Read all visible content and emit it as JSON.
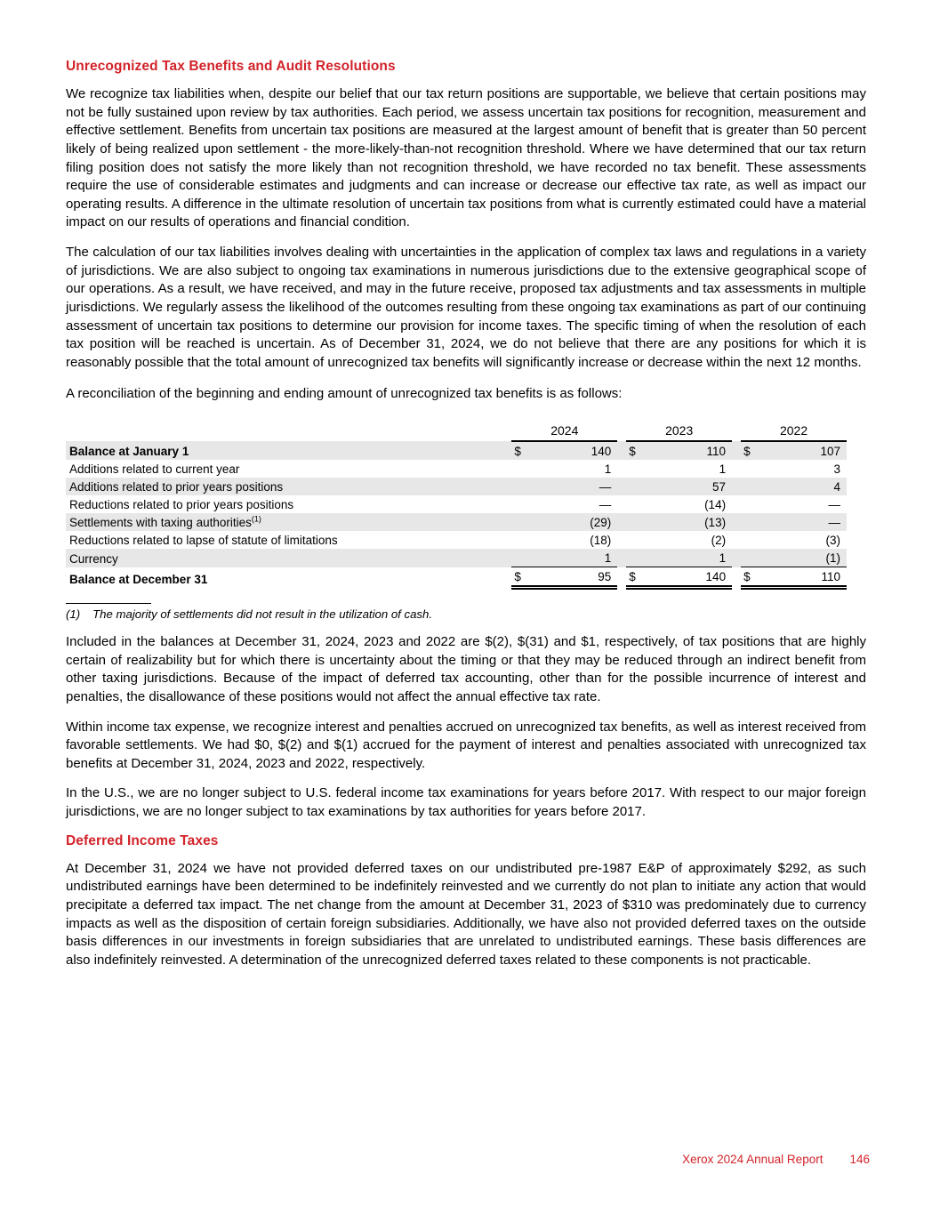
{
  "sections": {
    "utb": {
      "heading": "Unrecognized Tax Benefits and Audit Resolutions",
      "paragraphs": [
        "We recognize tax liabilities when, despite our belief that our tax return positions are supportable, we believe that certain positions may not be fully sustained upon review by tax authorities. Each period, we assess uncertain tax positions for recognition, measurement and effective settlement. Benefits from uncertain tax positions are measured at the largest amount of benefit that is greater than 50 percent likely of being realized upon settlement - the more-likely-than-not recognition threshold. Where we have determined that our tax return filing position does not satisfy the more likely than not recognition threshold, we have recorded no tax benefit. These assessments require the use of considerable estimates and judgments and can increase or decrease our effective tax rate, as well as impact our operating results. A difference in the ultimate resolution of uncertain tax positions from what is currently estimated could have a material impact on our results of operations and financial condition.",
        "The calculation of our tax liabilities involves dealing with uncertainties in the application of complex tax laws and regulations in a variety of jurisdictions. We are also subject to ongoing tax examinations in numerous jurisdictions due to the extensive geographical scope of our operations. As a result, we have received, and may in the future receive, proposed tax adjustments and tax assessments in multiple jurisdictions. We regularly assess the likelihood of the outcomes resulting from these ongoing tax examinations as part of our continuing assessment of uncertain tax positions to determine our provision for income taxes. The specific timing of when the resolution of each tax position will be reached is uncertain. As of December 31, 2024, we do not believe that there are any positions for which it is reasonably possible that the total amount of unrecognized tax benefits will significantly increase or decrease within the next 12 months."
      ],
      "table_intro": "A reconciliation of the beginning and ending amount of unrecognized tax benefits is as follows:"
    },
    "table": {
      "columns": [
        "2024",
        "2023",
        "2022"
      ],
      "rows": [
        {
          "label": "Balance at January 1",
          "dollar": "$",
          "values": [
            "140",
            "110",
            "107"
          ]
        },
        {
          "label": "Additions related to current year",
          "values": [
            "1",
            "1",
            "3"
          ]
        },
        {
          "label": "Additions related to prior years positions",
          "values": [
            "—",
            "57",
            "4"
          ]
        },
        {
          "label": "Reductions related to prior years positions",
          "values": [
            "—",
            "(14)",
            "—"
          ]
        },
        {
          "label": "Settlements with taxing authorities",
          "superscript": "(1)",
          "values": [
            "(29)",
            "(13)",
            "—"
          ]
        },
        {
          "label": "Reductions related to lapse of statute of limitations",
          "values": [
            "(18)",
            "(2)",
            "(3)"
          ]
        },
        {
          "label": "Currency",
          "values": [
            "1",
            "1",
            "(1)"
          ]
        },
        {
          "label": "Balance at December 31",
          "dollar": "$",
          "values": [
            "95",
            "140",
            "110"
          ]
        }
      ],
      "footnote_marker": "(1)",
      "footnote_text": "The majority of settlements did not result in the utilization of cash."
    },
    "post_paragraphs": [
      "Included in the balances at December 31, 2024, 2023 and 2022 are $(2), $(31) and $1, respectively, of tax positions that are highly certain of realizability but for which there is uncertainty about the timing or that they may be reduced through an indirect benefit from other taxing jurisdictions. Because of the impact of deferred tax accounting, other than for the possible incurrence of interest and penalties, the disallowance of these positions would not affect the annual effective tax rate.",
      "Within income tax expense, we recognize interest and penalties accrued on unrecognized tax benefits, as well as interest received from favorable settlements. We had $0, $(2) and $(1) accrued for the payment of interest and penalties associated with unrecognized tax benefits at December 31, 2024, 2023 and 2022, respectively.",
      "In the U.S., we are no longer subject to U.S. federal income tax examinations for years before 2017. With respect to our major foreign jurisdictions, we are no longer subject to tax examinations by tax authorities for years before 2017."
    ],
    "deferred": {
      "heading": "Deferred Income Taxes",
      "paragraphs": [
        "At December 31, 2024 we have not provided deferred taxes on our undistributed pre-1987 E&P of approximately $292, as such undistributed earnings have been determined to be indefinitely reinvested and we currently do not plan to initiate any action that would precipitate a deferred tax impact. The net change from the amount at December 31, 2023 of $310 was predominately due to currency impacts as well as the disposition of certain foreign subsidiaries. Additionally, we have also not provided deferred taxes on the outside basis differences in our investments in foreign subsidiaries that are unrelated to undistributed earnings. These basis differences are also indefinitely reinvested. A determination of the unrecognized deferred taxes related to these components is not practicable."
      ]
    }
  },
  "footer": {
    "report_title": "Xerox 2024 Annual Report",
    "page_number": "146"
  },
  "colors": {
    "accent_red": "#D2232A",
    "row_shade": "#E7E7E7",
    "text": "#000000",
    "background": "#FFFFFF"
  }
}
